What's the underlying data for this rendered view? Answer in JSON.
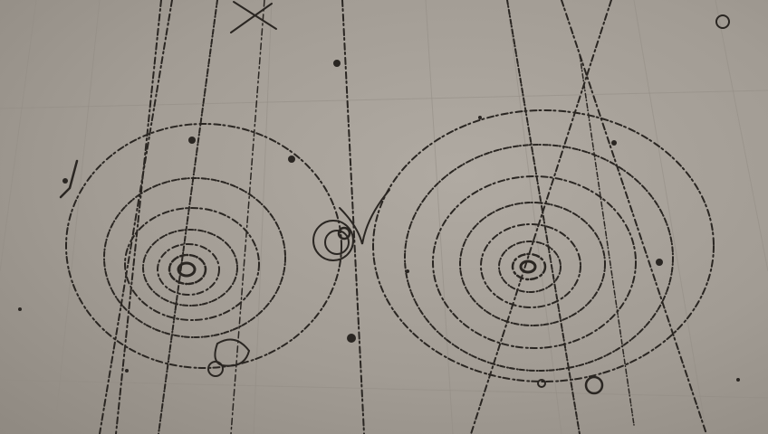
{
  "scene": {
    "description_colors": {
      "background": "#a39d95",
      "ink": "#2a2622",
      "wood_grain": "#938d85"
    },
    "icons": [
      "bubble-chamber-tracks-photo"
    ]
  }
}
